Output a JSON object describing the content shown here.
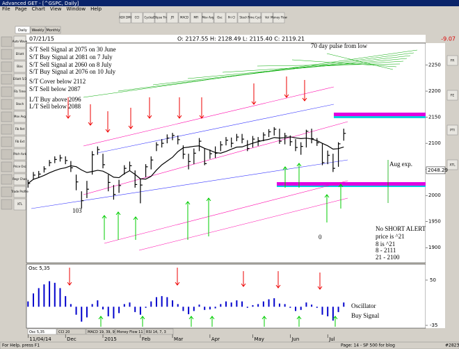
{
  "window": {
    "title": "Advanced GET - [^GSPC, Daily]",
    "menu": [
      "File",
      "Page",
      "Chart",
      "View",
      "Window",
      "Help"
    ],
    "toolbar": [
      "ADX DMI",
      "CCI",
      "Cycles",
      "Ellipse Trig",
      "JTI",
      "MACD",
      "MFI",
      "Mov Avg",
      "Osc",
      "Pri Cl",
      "Stoch",
      "Time Cycle",
      "Vol",
      "Money Flow"
    ],
    "tabs": [
      "Daily",
      "Weekly",
      "Monthly"
    ],
    "left_tools": [
      "Auto Wave",
      "Elliott",
      "Bias",
      "Elliott 5/3",
      "Fib Time",
      "Stoch",
      "Mov Avg",
      "Fib Ret",
      "Fib Ext",
      "Pitch fork",
      "Price Osc",
      "Regr Chan",
      "Trade Profile",
      "XTL"
    ],
    "right_tools": [
      "FR",
      "FE",
      "PTI",
      "XTL"
    ],
    "status": [
      "For Help, press F1",
      "Page: 14 - SP 500 for blog",
      "#2823"
    ]
  },
  "info": {
    "date": "07/21/15",
    "ohlc": "O: 2127.55   H: 2128.49   L: 2115.40   C: 2119.21",
    "change": "-9.07"
  },
  "chart_data": [
    {
      "type": "candlestick",
      "close": [
        2023,
        2039,
        2041,
        2051,
        2063,
        2069,
        2072,
        2067,
        2053,
        2026,
        1990,
        2012,
        2078,
        2088,
        2059,
        2025,
        2002,
        2019,
        2052,
        2057,
        2021,
        2020,
        2055,
        2068,
        2097,
        2100,
        2110,
        2115,
        2107,
        2079,
        2065,
        2081,
        2104,
        2061,
        2080,
        2081,
        2097,
        2106,
        2100,
        2112,
        2108,
        2090,
        2108,
        2105,
        2116,
        2122,
        2127,
        2104,
        2114,
        2103,
        2092,
        2094,
        2123,
        2109,
        2101,
        2063,
        2077,
        2052,
        2099,
        2119
      ],
      "high": [
        2030,
        2045,
        2047,
        2056,
        2068,
        2075,
        2078,
        2075,
        2066,
        2040,
        2008,
        2028,
        2085,
        2094,
        2080,
        2040,
        2020,
        2030,
        2058,
        2065,
        2048,
        2032,
        2060,
        2075,
        2102,
        2108,
        2117,
        2120,
        2115,
        2096,
        2080,
        2090,
        2110,
        2090,
        2088,
        2094,
        2104,
        2112,
        2111,
        2118,
        2118,
        2106,
        2114,
        2112,
        2121,
        2127,
        2131,
        2128,
        2120,
        2115,
        2108,
        2102,
        2126,
        2128,
        2110,
        2100,
        2086,
        2080,
        2102,
        2128
      ],
      "low": [
        2015,
        2030,
        2034,
        2044,
        2056,
        2062,
        2065,
        2060,
        2045,
        2010,
        1975,
        1995,
        2040,
        2078,
        2052,
        2008,
        1992,
        2005,
        2040,
        2048,
        2015,
        1985,
        2035,
        2050,
        2085,
        2092,
        2100,
        2106,
        2098,
        2070,
        2050,
        2060,
        2085,
        2058,
        2070,
        2072,
        2085,
        2096,
        2092,
        2104,
        2100,
        2085,
        2092,
        2095,
        2104,
        2112,
        2115,
        2099,
        2098,
        2095,
        2085,
        2078,
        2092,
        2100,
        2095,
        2058,
        2060,
        2045,
        2055,
        2105
      ],
      "color": "#000000",
      "xlim": [
        -0.3,
        74.3
      ],
      "ylim": [
        1871,
        2292
      ],
      "yticks": [
        1900,
        1950,
        2000,
        2050,
        2100,
        2150,
        2200,
        2250
      ],
      "price_marker": 2048.29,
      "annotations": [
        "S/T Sell Signal at 2075 on 30 June",
        "S/T Buy Signal at 2081 on 7 July",
        "S/T Sell Signal at 2060 on 8 July",
        "S/T Buy Signal at 2076 on 10 July",
        "S/T Cover below 2112",
        "S/T Sell below 2087",
        "L/T Buy above 2096",
        "L/T Sell below 2088",
        "70 day pulse from low",
        "Aug exp.",
        "103",
        "0",
        "No SHORT ALERT",
        "price is ^21",
        "8 is ^21",
        "8   - 2111",
        "21 - 2100"
      ]
    },
    {
      "type": "bar",
      "title": "Osc 5,35",
      "color": "#0000cc",
      "values": [
        10,
        25,
        35,
        42,
        48,
        45,
        35,
        20,
        5,
        -15,
        -28,
        -20,
        5,
        12,
        -5,
        -18,
        -22,
        -12,
        5,
        8,
        -10,
        -15,
        -2,
        10,
        18,
        20,
        18,
        12,
        5,
        -8,
        -14,
        -8,
        4,
        -6,
        -5,
        -3,
        5,
        10,
        8,
        12,
        10,
        -2,
        3,
        5,
        10,
        14,
        16,
        6,
        5,
        -2,
        -8,
        -6,
        8,
        4,
        -2,
        -15,
        -18,
        -26,
        -10,
        8
      ],
      "xlim": [
        -0.3,
        74.3
      ],
      "ylim": [
        -35,
        80
      ],
      "yticks": [
        50,
        -35
      ],
      "xticks": [
        {
          "value": 0,
          "label": "11/04/14"
        },
        {
          "value": 7,
          "label": "Dec"
        },
        {
          "value": 14,
          "label": "2015"
        },
        {
          "value": 21,
          "label": "Feb"
        },
        {
          "value": 27,
          "label": "Mar"
        },
        {
          "value": 34,
          "label": "Apr"
        },
        {
          "value": 42,
          "label": "May"
        },
        {
          "value": 49,
          "label": "Jun"
        },
        {
          "value": 56,
          "label": "Jul"
        }
      ],
      "annotations": [
        "Oscillator",
        "Buy Signal"
      ]
    }
  ],
  "indicator_tabs": [
    "Osc 5,35",
    "CCI 20",
    "MACD 19, 39, 9",
    "Money Flow 11",
    "RSI 14, 7, 3"
  ]
}
